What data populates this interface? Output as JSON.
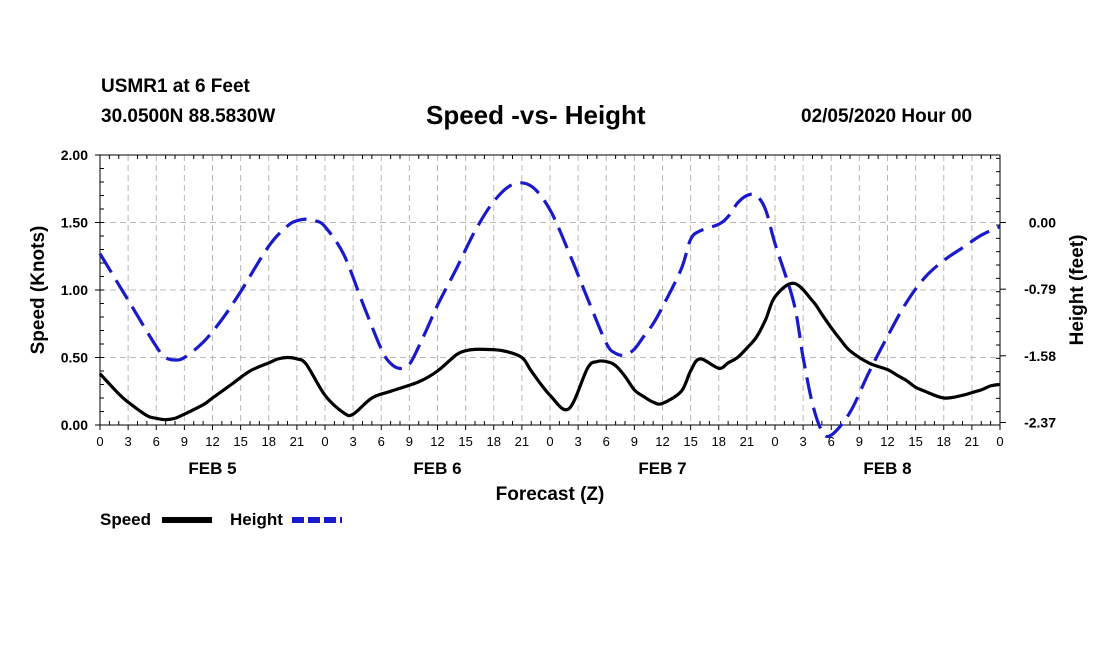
{
  "header": {
    "station": "USMR1 at 6 Feet",
    "coords": "30.0500N 88.5830W",
    "datetime": "02/05/2020 Hour 00"
  },
  "colors": {
    "speed": "#000000",
    "height": "#1a1acc",
    "grid": "#b8b8b8"
  },
  "chart_data": {
    "type": "line",
    "title": "Speed -vs- Height",
    "xlabel": "Forecast (Z)",
    "ylabel": "Speed (Knots)",
    "y2label": "Height (feet)",
    "x_hours_range": [
      0,
      96
    ],
    "ylim": [
      0,
      2
    ],
    "y_ticks": [
      0,
      0.5,
      1,
      1.5,
      2
    ],
    "y_tick_labels": [
      "0.00",
      "0.50",
      "1.00",
      "1.50",
      "2.00"
    ],
    "y2lim": [
      -2.4,
      0.8
    ],
    "y2_ticks": [
      0,
      -0.79,
      -1.58,
      -2.37
    ],
    "y2_tick_labels": [
      "0.00",
      "-0.79",
      "-1.58",
      "-2.37"
    ],
    "x_tick_labels": [
      "0",
      "3",
      "6",
      "9",
      "12",
      "15",
      "18",
      "21",
      "0",
      "3",
      "6",
      "9",
      "12",
      "15",
      "18",
      "21",
      "0",
      "3",
      "6",
      "9",
      "12",
      "15",
      "18",
      "21",
      "0",
      "3",
      "6",
      "9",
      "12",
      "15",
      "18",
      "21",
      "0"
    ],
    "day_labels": [
      {
        "label": "FEB 5",
        "hour": 12
      },
      {
        "label": "FEB 6",
        "hour": 36
      },
      {
        "label": "FEB 7",
        "hour": 60
      },
      {
        "label": "FEB 8",
        "hour": 84
      }
    ],
    "series": [
      {
        "name": "Speed",
        "axis": "left",
        "x": [
          0,
          2,
          3,
          5,
          6,
          7,
          8,
          9,
          11,
          12,
          14,
          16,
          18,
          19,
          20,
          21,
          22,
          24,
          26,
          27,
          29,
          31,
          34,
          36,
          38,
          39,
          40,
          41,
          43,
          45,
          46,
          48,
          50,
          52,
          53,
          54,
          55,
          56,
          57,
          58,
          59,
          60,
          62,
          63,
          64,
          66,
          67,
          68,
          69,
          70,
          71,
          72,
          74,
          76,
          77,
          78,
          79,
          80,
          82,
          84,
          85,
          86,
          87,
          88,
          90,
          92,
          93,
          94,
          95,
          96
        ],
        "values": [
          0.38,
          0.23,
          0.17,
          0.07,
          0.05,
          0.04,
          0.05,
          0.08,
          0.15,
          0.2,
          0.3,
          0.4,
          0.46,
          0.49,
          0.5,
          0.49,
          0.45,
          0.22,
          0.09,
          0.08,
          0.2,
          0.25,
          0.32,
          0.4,
          0.52,
          0.55,
          0.56,
          0.56,
          0.55,
          0.5,
          0.4,
          0.22,
          0.12,
          0.42,
          0.47,
          0.47,
          0.44,
          0.36,
          0.26,
          0.21,
          0.17,
          0.16,
          0.25,
          0.4,
          0.49,
          0.42,
          0.46,
          0.5,
          0.57,
          0.65,
          0.78,
          0.95,
          1.05,
          0.92,
          0.82,
          0.72,
          0.63,
          0.55,
          0.46,
          0.41,
          0.37,
          0.33,
          0.28,
          0.25,
          0.2,
          0.22,
          0.24,
          0.26,
          0.29,
          0.3
        ]
      },
      {
        "name": "Height",
        "axis": "right",
        "x": [
          0,
          3,
          6,
          7,
          8,
          9,
          11,
          13,
          15,
          18,
          20,
          21,
          22,
          23,
          24,
          26,
          28,
          30,
          31,
          32,
          33,
          34,
          35,
          36,
          38,
          40,
          42,
          44,
          46,
          48,
          50,
          52,
          54,
          55,
          56,
          57,
          58,
          59,
          60,
          62,
          63,
          64,
          66,
          67,
          68,
          69,
          70,
          71,
          72,
          74,
          75,
          76,
          77,
          78,
          80,
          82,
          84,
          86,
          88,
          90,
          92,
          94,
          96
        ],
        "values": [
          -0.37,
          -0.92,
          -1.47,
          -1.6,
          -1.63,
          -1.6,
          -1.42,
          -1.15,
          -0.82,
          -0.28,
          -0.04,
          0.02,
          0.04,
          0.02,
          -0.05,
          -0.38,
          -0.95,
          -1.5,
          -1.67,
          -1.73,
          -1.68,
          -1.47,
          -1.23,
          -0.98,
          -0.55,
          -0.1,
          0.25,
          0.45,
          0.43,
          0.15,
          -0.35,
          -0.9,
          -1.43,
          -1.55,
          -1.57,
          -1.5,
          -1.35,
          -1.2,
          -1.0,
          -0.55,
          -0.2,
          -0.1,
          -0.02,
          0.07,
          0.23,
          0.32,
          0.32,
          0.15,
          -0.25,
          -0.95,
          -1.6,
          -2.15,
          -2.47,
          -2.52,
          -2.25,
          -1.78,
          -1.35,
          -0.95,
          -0.65,
          -0.45,
          -0.3,
          -0.15,
          -0.05
        ]
      }
    ],
    "legend": [
      {
        "label": "Speed",
        "style": "solid"
      },
      {
        "label": "Height",
        "style": "dashed"
      }
    ]
  }
}
